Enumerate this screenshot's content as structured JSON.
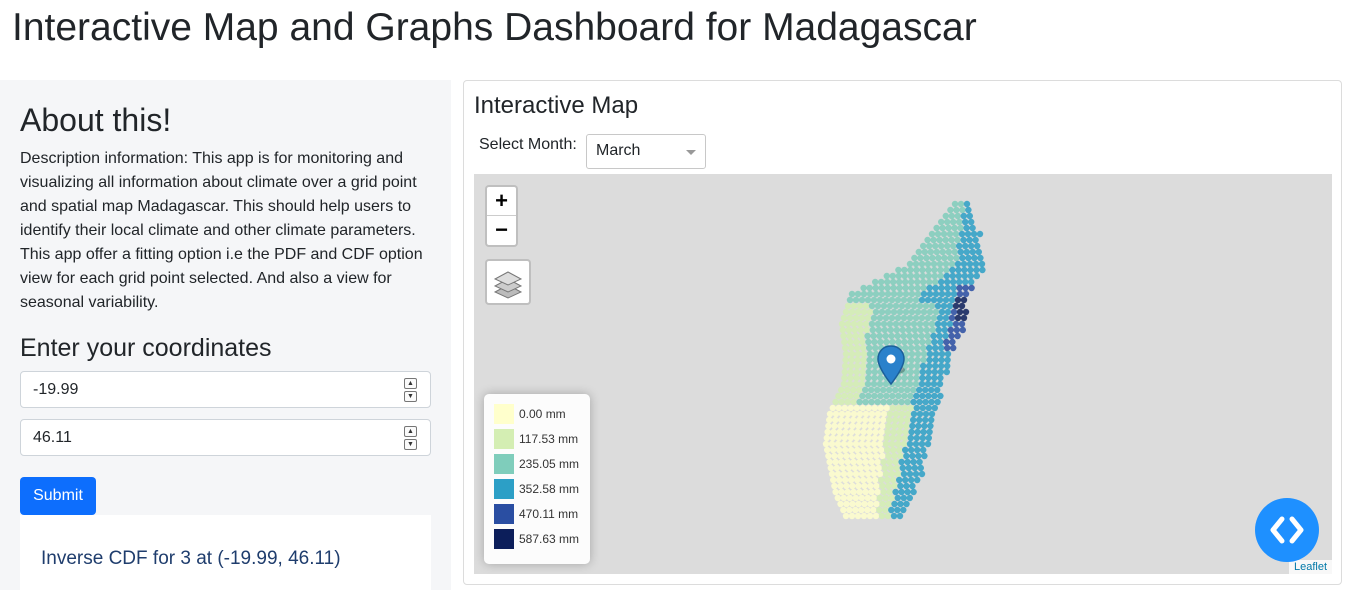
{
  "page": {
    "title": "Interactive Map and Graphs Dashboard for Madagascar"
  },
  "sidebar": {
    "about_title": "About this!",
    "about_text": "Description information: This app is for monitoring and visualizing all information about climate over a grid point and spatial map Madagascar. This should help users to identify their local climate and other climate parameters. This app offer a fitting option i.e the PDF and CDF option view for each grid point selected. And also a view for seasonal variability.",
    "coords_title": "Enter your coordinates",
    "latitude_value": "-19.99",
    "longitude_value": "46.11",
    "submit_label": "Submit",
    "result_title": "Inverse CDF for 3 at (-19.99, 46.11)"
  },
  "map_panel": {
    "title": "Interactive Map",
    "select_label": "Select Month:",
    "selected_month": "March",
    "zoom_in": "+",
    "zoom_out": "−",
    "attribution": "Leaflet",
    "legend": [
      {
        "label": "0.00 mm",
        "color": "#ffffcc"
      },
      {
        "label": "117.53 mm",
        "color": "#d4eeb3"
      },
      {
        "label": "235.05 mm",
        "color": "#7fcdbb"
      },
      {
        "label": "352.58 mm",
        "color": "#2c9fc6"
      },
      {
        "label": "470.11 mm",
        "color": "#2a4ea2"
      },
      {
        "label": "587.63 mm",
        "color": "#0c1e5a"
      }
    ]
  },
  "colors": {
    "accent": "#0d6efd",
    "fab": "#1e90ff",
    "map_bg": "#dcdcdc"
  },
  "icons": {
    "layers": "layers-icon",
    "marker": "map-marker-icon",
    "fab": "code-icon"
  }
}
